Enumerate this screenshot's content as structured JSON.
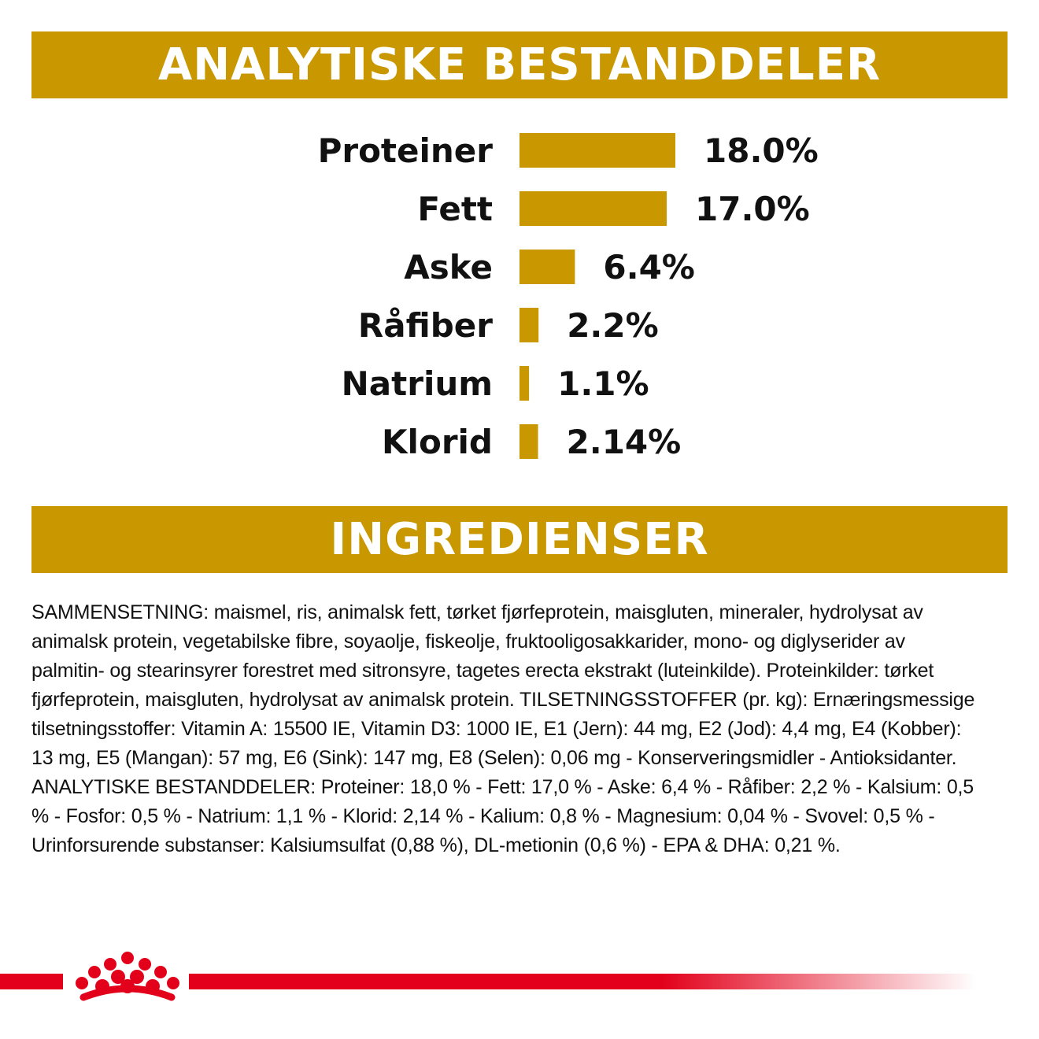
{
  "colors": {
    "gold": "#C99700",
    "red": "#E2001A",
    "text": "#111111"
  },
  "headings": {
    "analytical": "ANALYTISKE BESTANDDELER",
    "ingredients": "INGREDIENSER"
  },
  "chart_data": {
    "type": "bar",
    "orientation": "horizontal",
    "categories": [
      "Proteiner",
      "Fett",
      "Aske",
      "Råfiber",
      "Natrium",
      "Klorid"
    ],
    "values": [
      18.0,
      17.0,
      6.4,
      2.2,
      1.1,
      2.14
    ],
    "value_labels": [
      "18.0%",
      "17.0%",
      "6.4%",
      "2.2%",
      "1.1%",
      "2.14%"
    ],
    "unit": "%",
    "xlim": [
      0,
      18.0
    ],
    "grid": false,
    "axes_visible": false
  },
  "ingredients_lines": [
    "SAMMENSETNING: maismel, ris, animalsk fett, tørket fjørfeprotein, maisgluten, mineraler, hydrolysat av",
    "animalsk protein, vegetabilske fibre, soyaolje, fiskeolje, fruktooligosakkarider, mono- og diglyserider av",
    "palmitin- og stearinsyrer forestret med sitronsyre, tagetes erecta ekstrakt (luteinkilde). Proteinkilder: tørket",
    "fjørfeprotein, maisgluten, hydrolysat av animalsk protein. TILSETNINGSSTOFFER (pr. kg): Ernæringsmessige",
    "tilsetningsstoffer: Vitamin A: 15500 IE, Vitamin D3: 1000 IE, E1 (Jern): 44 mg, E2 (Jod): 4,4 mg, E4 (Kobber):",
    "13 mg, E5 (Mangan): 57 mg, E6 (Sink): 147 mg, E8 (Selen): 0,06 mg - Konserveringsmidler - Antioksidanter.",
    "ANALYTISKE BESTANDDELER: Proteiner: 18,0 % - Fett: 17,0 % - Aske: 6,4 % - Råfiber: 2,2 % - Kalsium: 0,5",
    "% - Fosfor: 0,5 % - Natrium: 1,1 % - Klorid: 2,14 % - Kalium: 0,8 % - Magnesium: 0,04 % - Svovel: 0,5 % -",
    "Urinforsurende substanser: Kalsiumsulfat (0,88 %), DL-metionin (0,6 %) - EPA & DHA: 0,21 %."
  ],
  "logo": {
    "icon": "crown-icon"
  }
}
